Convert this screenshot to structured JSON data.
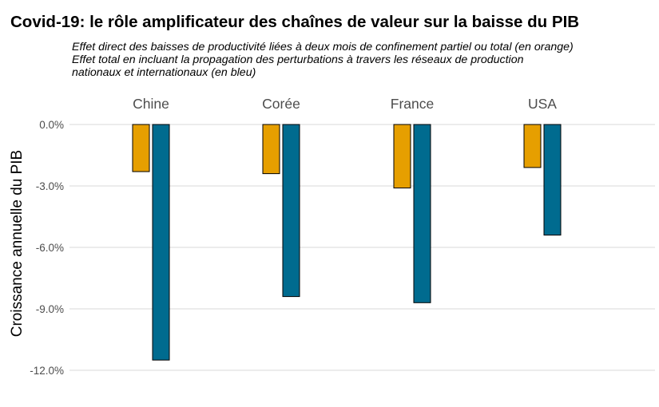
{
  "chart_data": {
    "type": "bar",
    "title": "Covid-19: le rôle amplificateur des chaînes de valeur sur la baisse du PIB",
    "subtitle": [
      "Effet direct des baisses de productivité liées à deux mois de confinement partiel ou total (en orange)",
      "Effet total en incluant la propagation des perturbations à travers les réseaux de production",
      "nationaux et internationaux (en bleu)"
    ],
    "xlabel": "",
    "ylabel": "Croissance annuelle du PIB",
    "categories": [
      "Chine",
      "Corée",
      "France",
      "USA"
    ],
    "series": [
      {
        "color": "#E69F00",
        "values": [
          -2.3,
          -2.4,
          -3.1,
          -2.1
        ]
      },
      {
        "color": "#006B8F",
        "values": [
          -11.5,
          -8.4,
          -8.7,
          -5.4
        ]
      }
    ],
    "ylim": [
      -12.0,
      0.0
    ],
    "yticks": [
      0.0,
      -3.0,
      -6.0,
      -9.0,
      -12.0
    ],
    "ytick_labels": [
      "0.0%",
      "-3.0%",
      "-6.0%",
      "-9.0%",
      "-12.0%"
    ],
    "grid": true,
    "facet_panels": true,
    "legend": "none"
  }
}
